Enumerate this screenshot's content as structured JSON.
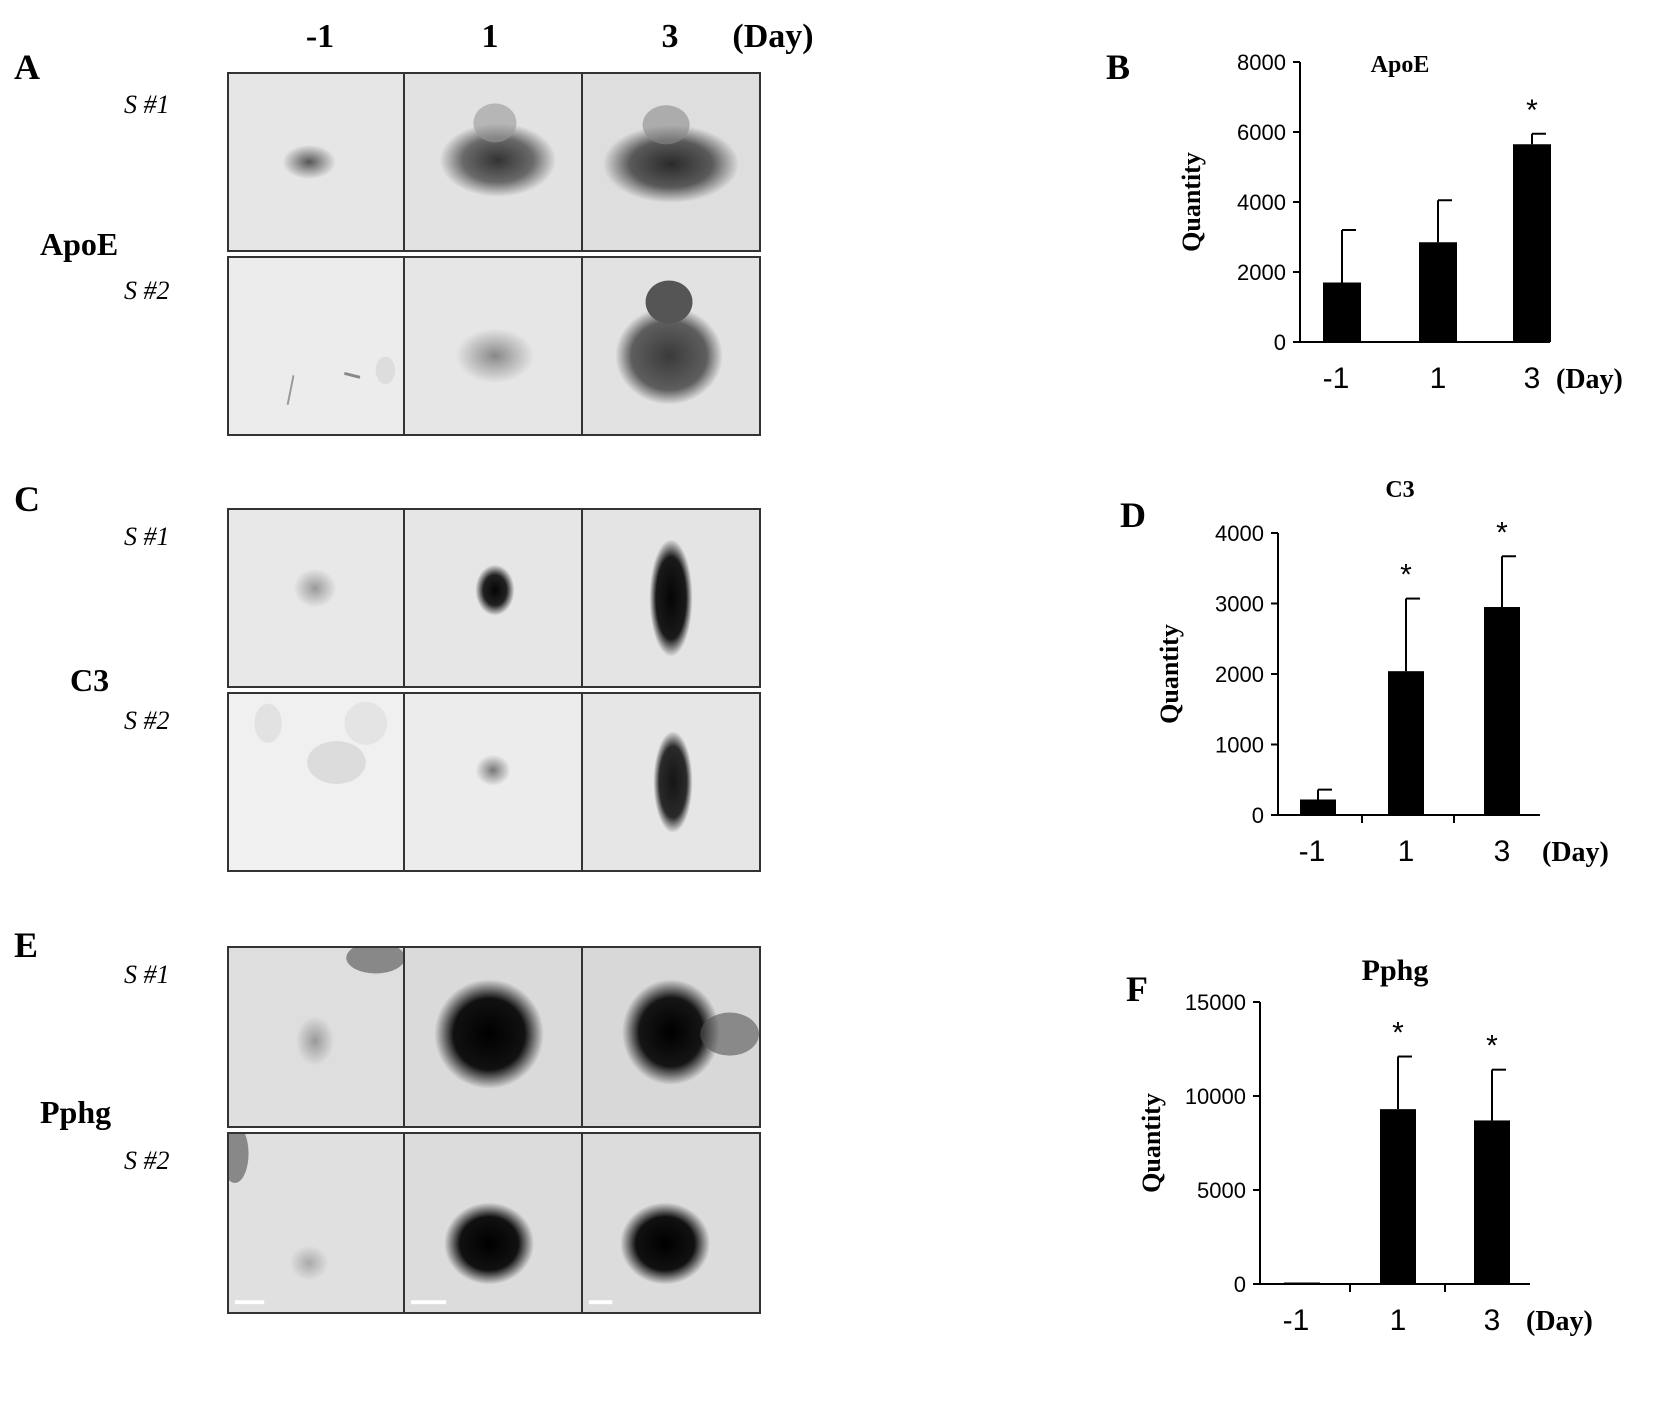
{
  "figure": {
    "panels": {
      "A": "A",
      "B": "B",
      "C": "C",
      "D": "D",
      "E": "E",
      "F": "F"
    },
    "day_header": {
      "d1": "-1",
      "d2": "1",
      "d3": "3",
      "unit": "(Day)"
    },
    "blots": [
      {
        "title": "ApoE",
        "samples": [
          "S #1",
          "S #2"
        ]
      },
      {
        "title": "C3",
        "samples": [
          "S #1",
          "S #2"
        ]
      },
      {
        "title": "Pphg",
        "samples": [
          "S #1",
          "S #2"
        ]
      }
    ]
  },
  "chart_data": [
    {
      "type": "bar",
      "title": "ApoE",
      "ylabel": "Quantity",
      "categories": [
        "-1",
        "1",
        "3"
      ],
      "x_unit": "(Day)",
      "values": [
        1700,
        2850,
        5650
      ],
      "errors": [
        1500,
        1200,
        300
      ],
      "significance": [
        "",
        "",
        "*"
      ],
      "ylim": [
        0,
        8000
      ],
      "yticks": [
        "0",
        "2000",
        "4000",
        "6000",
        "8000"
      ],
      "bar_color": "#000000"
    },
    {
      "type": "bar",
      "title": "C3",
      "ylabel": "Quantity",
      "categories": [
        "-1",
        "1",
        "3"
      ],
      "x_unit": "(Day)",
      "values": [
        220,
        2040,
        2950
      ],
      "errors": [
        140,
        1030,
        720
      ],
      "significance": [
        "",
        "*",
        "*"
      ],
      "ylim": [
        0,
        4000
      ],
      "yticks": [
        "0",
        "1000",
        "2000",
        "3000",
        "4000"
      ],
      "bar_color": "#000000"
    },
    {
      "type": "bar",
      "title": "Pphg",
      "ylabel": "Quantity",
      "categories": [
        "-1",
        "1",
        "3"
      ],
      "x_unit": "(Day)",
      "values": [
        80,
        9300,
        8700
      ],
      "errors": [
        0,
        2800,
        2700
      ],
      "significance": [
        "",
        "*",
        "*"
      ],
      "ylim": [
        0,
        15000
      ],
      "yticks": [
        "0",
        "5000",
        "10000",
        "15000"
      ],
      "bar_color": "#000000"
    }
  ]
}
